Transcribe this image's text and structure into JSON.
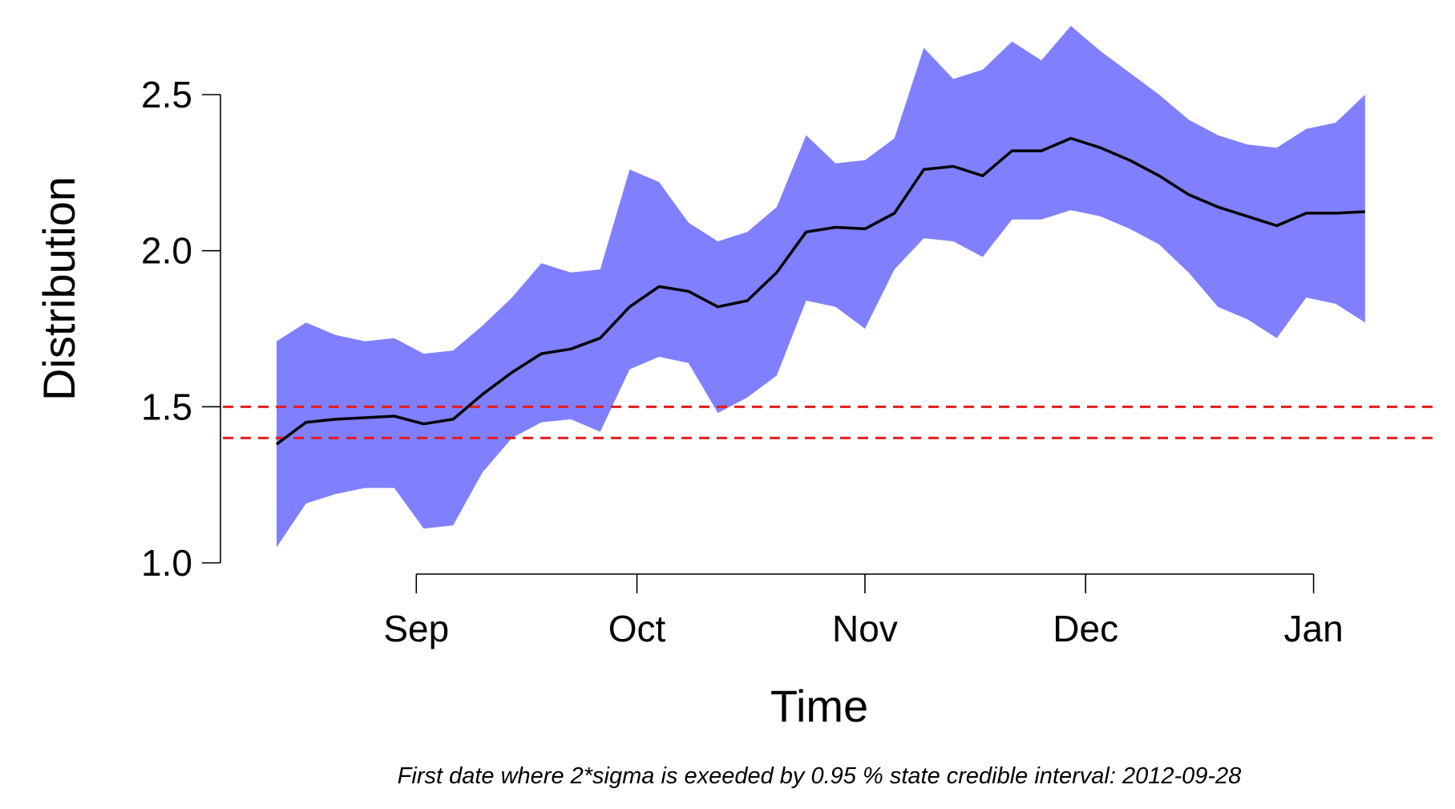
{
  "chart_data": {
    "type": "area",
    "xlabel": "Time",
    "ylabel": "Distribution",
    "caption": "First date where 2*sigma is exeeded by 0.95 % state credible interval: 2012-09-28",
    "x_axis": {
      "type": "date",
      "range": [
        "2012-08-13",
        "2013-01-09"
      ],
      "ticks": [
        {
          "date": "2012-09-01",
          "label": "Sep"
        },
        {
          "date": "2012-10-01",
          "label": "Oct"
        },
        {
          "date": "2012-11-01",
          "label": "Nov"
        },
        {
          "date": "2012-12-01",
          "label": "Dec"
        },
        {
          "date": "2013-01-01",
          "label": "Jan"
        }
      ]
    },
    "y_axis": {
      "range": [
        1.0,
        2.5
      ],
      "ticks": [
        1.0,
        1.5,
        2.0,
        2.5
      ],
      "tick_labels": [
        "1.0",
        "1.5",
        "2.0",
        "2.5"
      ]
    },
    "reference_lines": [
      {
        "y": 1.5,
        "color": "#e41a1c",
        "style": "dashed"
      },
      {
        "y": 1.4,
        "color": "#e41a1c",
        "style": "dashed"
      }
    ],
    "band_color": "#8080ff",
    "line_color": "#000000",
    "series": [
      {
        "x": [
          "2012-08-13",
          "2012-08-17",
          "2012-08-21",
          "2012-08-25",
          "2012-08-29",
          "2012-09-02",
          "2012-09-06",
          "2012-09-10",
          "2012-09-14",
          "2012-09-18",
          "2012-09-22",
          "2012-09-26",
          "2012-09-30",
          "2012-10-04",
          "2012-10-08",
          "2012-10-12",
          "2012-10-16",
          "2012-10-20",
          "2012-10-24",
          "2012-10-28",
          "2012-11-01",
          "2012-11-05",
          "2012-11-09",
          "2012-11-13",
          "2012-11-17",
          "2012-11-21",
          "2012-11-25",
          "2012-11-29",
          "2012-12-03",
          "2012-12-07",
          "2012-12-11",
          "2012-12-15",
          "2012-12-19",
          "2012-12-23",
          "2012-12-27",
          "2012-12-31",
          "2013-01-04",
          "2013-01-08"
        ],
        "mean": [
          1.38,
          1.45,
          1.46,
          1.465,
          1.47,
          1.445,
          1.46,
          1.54,
          1.61,
          1.67,
          1.685,
          1.72,
          1.82,
          1.885,
          1.87,
          1.82,
          1.84,
          1.93,
          2.06,
          2.075,
          2.07,
          2.12,
          2.26,
          2.27,
          2.24,
          2.32,
          2.32,
          2.36,
          2.33,
          2.29,
          2.24,
          2.18,
          2.14,
          2.11,
          2.08,
          2.12,
          2.12,
          2.125
        ],
        "upper": [
          1.71,
          1.77,
          1.73,
          1.71,
          1.72,
          1.67,
          1.68,
          1.76,
          1.85,
          1.96,
          1.93,
          1.94,
          2.26,
          2.22,
          2.09,
          2.03,
          2.06,
          2.14,
          2.37,
          2.28,
          2.29,
          2.36,
          2.65,
          2.55,
          2.58,
          2.67,
          2.61,
          2.72,
          2.64,
          2.57,
          2.5,
          2.42,
          2.37,
          2.34,
          2.33,
          2.39,
          2.41,
          2.5
        ],
        "lower": [
          1.05,
          1.19,
          1.22,
          1.24,
          1.24,
          1.11,
          1.12,
          1.29,
          1.4,
          1.45,
          1.46,
          1.42,
          1.62,
          1.66,
          1.64,
          1.48,
          1.53,
          1.6,
          1.84,
          1.82,
          1.75,
          1.94,
          2.04,
          2.03,
          1.98,
          2.1,
          2.1,
          2.13,
          2.11,
          2.07,
          2.02,
          1.93,
          1.82,
          1.78,
          1.72,
          1.85,
          1.83,
          1.77
        ]
      }
    ]
  }
}
